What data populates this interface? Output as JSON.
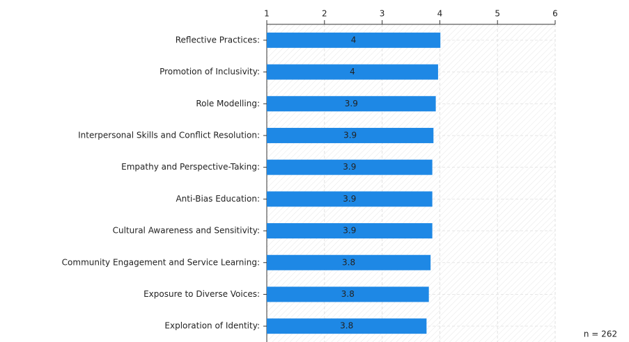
{
  "chart_data": {
    "type": "hbar",
    "categories": [
      "Reflective Practices:",
      "Promotion of Inclusivity:",
      "Role Modelling:",
      "Interpersonal Skills and Conflict Resolution:",
      "Empathy and Perspective-Taking:",
      "Anti-Bias Education:",
      "Cultural Awareness and Sensitivity:",
      "Community Engagement and Service Learning:",
      "Exposure to Diverse Voices:",
      "Exploration of Identity:"
    ],
    "values": [
      4.01,
      3.97,
      3.93,
      3.89,
      3.87,
      3.87,
      3.87,
      3.84,
      3.81,
      3.77
    ],
    "value_labels": [
      "4",
      "4",
      "3.9",
      "3.9",
      "3.9",
      "3.9",
      "3.9",
      "3.8",
      "3.8",
      "3.8"
    ],
    "color": "#1e88e5",
    "xlim": [
      1,
      6
    ],
    "xticks": [
      1,
      2,
      3,
      4,
      5,
      6
    ],
    "grid": true,
    "annotation": "n = 262"
  }
}
